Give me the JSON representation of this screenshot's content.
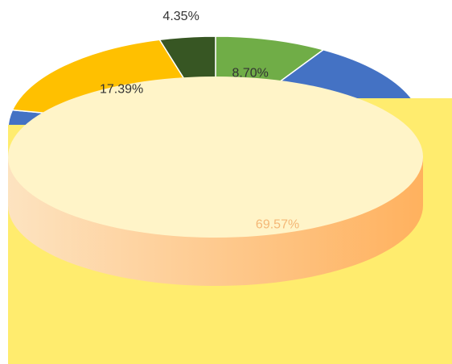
{
  "chart_data": {
    "type": "pie",
    "values": [
      8.7,
      69.57,
      17.39,
      4.35
    ],
    "value_labels": [
      "8.70%",
      "69.57%",
      "17.39%",
      "4.35%"
    ],
    "colors": [
      "#70ad47",
      "#4472c4",
      "#ffc000",
      "#375623"
    ],
    "three_d": true
  }
}
